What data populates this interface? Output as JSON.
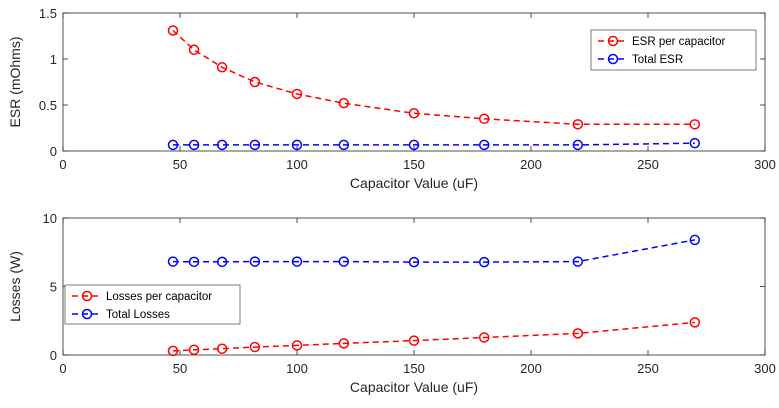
{
  "chart_data": [
    {
      "type": "line",
      "xlabel": "Capacitor Value (uF)",
      "ylabel": "ESR (mOhms)",
      "xlim": [
        0,
        300
      ],
      "ylim": [
        0,
        1.5
      ],
      "xticks": [
        0,
        50,
        100,
        150,
        200,
        250,
        300
      ],
      "yticks": [
        0,
        0.5,
        1,
        1.5
      ],
      "ytick_labels": [
        "0",
        "0.5",
        "1",
        "1.5"
      ],
      "x": [
        47,
        56,
        68,
        82,
        100,
        120,
        150,
        180,
        220,
        270
      ],
      "legend_position": "top-right",
      "series": [
        {
          "name": "ESR per capacitor",
          "color": "#ff0000",
          "values": [
            1.31,
            1.1,
            0.91,
            0.75,
            0.62,
            0.52,
            0.41,
            0.35,
            0.29,
            0.29
          ]
        },
        {
          "name": "Total ESR",
          "color": "#0000ff",
          "values": [
            0.066,
            0.066,
            0.066,
            0.066,
            0.066,
            0.066,
            0.066,
            0.066,
            0.066,
            0.085
          ]
        }
      ]
    },
    {
      "type": "line",
      "xlabel": "Capacitor Value (uF)",
      "ylabel": "Losses (W)",
      "xlim": [
        0,
        300
      ],
      "ylim": [
        0,
        10
      ],
      "xticks": [
        0,
        50,
        100,
        150,
        200,
        250,
        300
      ],
      "yticks": [
        0,
        5,
        10
      ],
      "ytick_labels": [
        "0",
        "5",
        "10"
      ],
      "x": [
        47,
        56,
        68,
        82,
        100,
        120,
        150,
        180,
        220,
        270
      ],
      "legend_position": "middle-left",
      "series": [
        {
          "name": "Losses per capacitor",
          "color": "#ff0000",
          "values": [
            0.3,
            0.38,
            0.46,
            0.58,
            0.7,
            0.85,
            1.05,
            1.28,
            1.58,
            2.38
          ]
        },
        {
          "name": "Total Losses",
          "color": "#0000ff",
          "values": [
            6.82,
            6.8,
            6.8,
            6.82,
            6.82,
            6.82,
            6.78,
            6.78,
            6.82,
            8.4
          ]
        }
      ]
    }
  ]
}
